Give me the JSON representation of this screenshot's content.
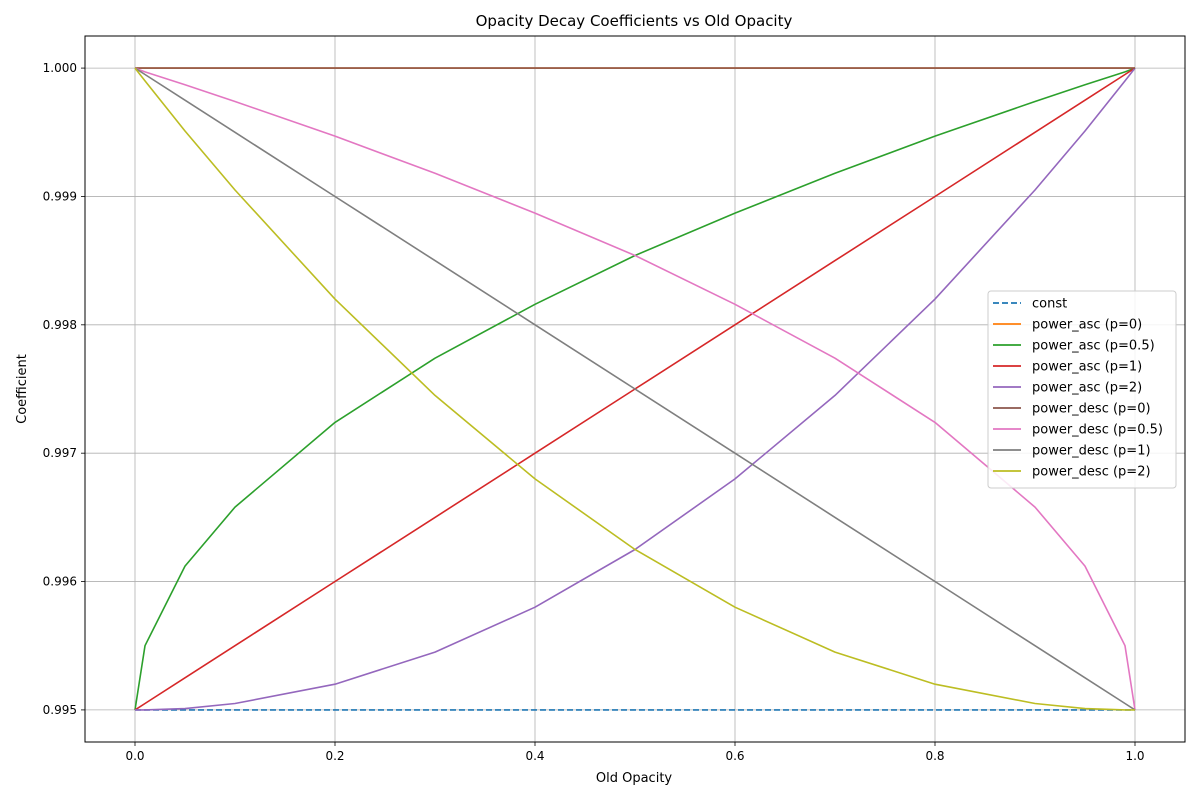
{
  "chart_data": {
    "type": "line",
    "title": "Opacity Decay Coefficients vs Old Opacity",
    "xlabel": "Old Opacity",
    "ylabel": "Coefficient",
    "xlim": [
      -0.05,
      1.05
    ],
    "ylim": [
      0.99475,
      1.00025
    ],
    "xticks": [
      0.0,
      0.2,
      0.4,
      0.6,
      0.8,
      1.0
    ],
    "xtick_labels": [
      "0.0",
      "0.2",
      "0.4",
      "0.6",
      "0.8",
      "1.0"
    ],
    "yticks": [
      0.995,
      0.996,
      0.997,
      0.998,
      0.999,
      1.0
    ],
    "ytick_labels": [
      "0.995",
      "0.996",
      "0.997",
      "0.998",
      "0.999",
      "1.000"
    ],
    "grid": true,
    "legend_position": "center-right",
    "x": [
      0.0,
      0.01,
      0.05,
      0.1,
      0.2,
      0.3,
      0.4,
      0.5,
      0.6,
      0.7,
      0.8,
      0.9,
      0.95,
      0.99,
      1.0
    ],
    "series": [
      {
        "name": "const",
        "color": "#1f77b4",
        "dash": "dashed",
        "values": [
          0.995,
          0.995,
          0.995,
          0.995,
          0.995,
          0.995,
          0.995,
          0.995,
          0.995,
          0.995,
          0.995,
          0.995,
          0.995,
          0.995,
          0.995
        ]
      },
      {
        "name": "power_asc (p=0)",
        "color": "#ff7f0e",
        "dash": "solid",
        "values": [
          1.0,
          1.0,
          1.0,
          1.0,
          1.0,
          1.0,
          1.0,
          1.0,
          1.0,
          1.0,
          1.0,
          1.0,
          1.0,
          1.0,
          1.0
        ]
      },
      {
        "name": "power_asc (p=0.5)",
        "color": "#2ca02c",
        "dash": "solid",
        "values": [
          0.995,
          0.9955,
          0.99612,
          0.99658,
          0.99724,
          0.99774,
          0.99816,
          0.99854,
          0.99887,
          0.99918,
          0.99947,
          0.99974,
          0.99987,
          0.99997,
          1.0
        ]
      },
      {
        "name": "power_asc (p=1)",
        "color": "#d62728",
        "dash": "solid",
        "values": [
          0.995,
          0.99505,
          0.99525,
          0.9955,
          0.996,
          0.9965,
          0.997,
          0.9975,
          0.998,
          0.9985,
          0.999,
          0.9995,
          0.99975,
          0.99995,
          1.0
        ]
      },
      {
        "name": "power_asc (p=2)",
        "color": "#9467bd",
        "dash": "solid",
        "values": [
          0.995,
          0.995,
          0.99501,
          0.99505,
          0.9952,
          0.99545,
          0.9958,
          0.99625,
          0.9968,
          0.99745,
          0.9982,
          0.99905,
          0.99951,
          0.9999,
          1.0
        ]
      },
      {
        "name": "power_desc (p=0)",
        "color": "#8c564b",
        "dash": "solid",
        "values": [
          1.0,
          1.0,
          1.0,
          1.0,
          1.0,
          1.0,
          1.0,
          1.0,
          1.0,
          1.0,
          1.0,
          1.0,
          1.0,
          1.0,
          1.0
        ]
      },
      {
        "name": "power_desc (p=0.5)",
        "color": "#e377c2",
        "dash": "solid",
        "values": [
          1.0,
          0.99997,
          0.99987,
          0.99974,
          0.99947,
          0.99918,
          0.99887,
          0.99854,
          0.99816,
          0.99774,
          0.99724,
          0.99658,
          0.99612,
          0.9955,
          0.995
        ]
      },
      {
        "name": "power_desc (p=1)",
        "color": "#7f7f7f",
        "dash": "solid",
        "values": [
          1.0,
          0.99995,
          0.99975,
          0.9995,
          0.999,
          0.9985,
          0.998,
          0.9975,
          0.997,
          0.9965,
          0.996,
          0.9955,
          0.99525,
          0.99505,
          0.995
        ]
      },
      {
        "name": "power_desc (p=2)",
        "color": "#bcbd22",
        "dash": "solid",
        "values": [
          1.0,
          0.9999,
          0.99951,
          0.99905,
          0.9982,
          0.99745,
          0.9968,
          0.99625,
          0.9958,
          0.99545,
          0.9952,
          0.99505,
          0.99501,
          0.995,
          0.995
        ]
      }
    ]
  }
}
